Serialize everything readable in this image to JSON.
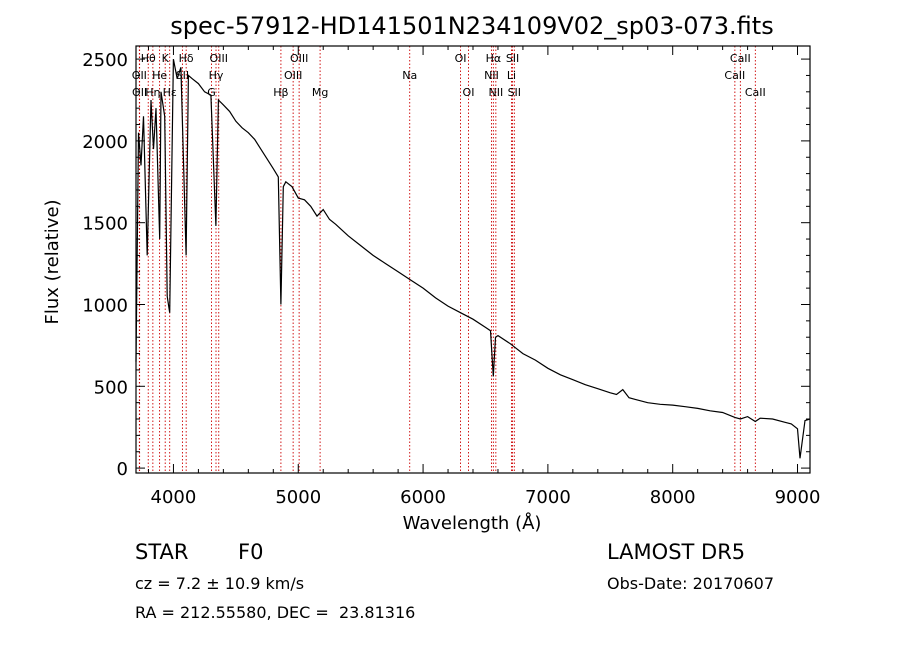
{
  "chart_data": {
    "type": "line",
    "title": "spec-57912-HD141501N234109V02_sp03-073.fits",
    "xlabel": "Wavelength (Å)",
    "ylabel": "Flux (relative)",
    "xlim": [
      3700,
      9100
    ],
    "ylim": [
      -30,
      2580
    ],
    "x_ticks": [
      4000,
      5000,
      6000,
      7000,
      8000,
      9000
    ],
    "y_ticks": [
      0,
      500,
      1000,
      1500,
      2000,
      2500
    ],
    "grid": false,
    "series": [
      {
        "x": [
          3700,
          3720,
          3740,
          3760,
          3790,
          3820,
          3840,
          3860,
          3890,
          3900,
          3930,
          3950,
          3970,
          4000,
          4030,
          4060,
          4101,
          4120,
          4150,
          4200,
          4250,
          4300,
          4340,
          4360,
          4400,
          4450,
          4500,
          4550,
          4600,
          4650,
          4700,
          4750,
          4800,
          4840,
          4861,
          4880,
          4900,
          4950,
          5000,
          5050,
          5100,
          5150,
          5200,
          5250,
          5300,
          5400,
          5500,
          5600,
          5700,
          5800,
          5900,
          6000,
          6100,
          6200,
          6300,
          6400,
          6500,
          6540,
          6563,
          6580,
          6600,
          6700,
          6800,
          6900,
          7000,
          7100,
          7200,
          7300,
          7400,
          7500,
          7550,
          7600,
          7650,
          7700,
          7800,
          7900,
          8000,
          8100,
          8200,
          8300,
          8400,
          8498,
          8542,
          8600,
          8662,
          8700,
          8800,
          8900,
          8950,
          9000,
          9020,
          9060,
          9100
        ],
        "y": [
          650,
          2050,
          1850,
          2150,
          1300,
          2250,
          1950,
          2200,
          1400,
          2300,
          2150,
          1050,
          950,
          2500,
          2380,
          2450,
          1300,
          2400,
          2380,
          2350,
          2300,
          2280,
          1480,
          2250,
          2220,
          2180,
          2120,
          2080,
          2050,
          2010,
          1950,
          1890,
          1830,
          1780,
          1000,
          1720,
          1750,
          1720,
          1650,
          1640,
          1600,
          1540,
          1580,
          1520,
          1490,
          1420,
          1360,
          1300,
          1250,
          1200,
          1150,
          1100,
          1040,
          990,
          950,
          910,
          860,
          840,
          560,
          800,
          810,
          760,
          700,
          660,
          610,
          570,
          540,
          510,
          485,
          460,
          450,
          480,
          430,
          420,
          400,
          390,
          385,
          375,
          365,
          350,
          340,
          310,
          300,
          315,
          285,
          305,
          300,
          280,
          270,
          240,
          60,
          290,
          300
        ]
      }
    ],
    "line_markers": [
      {
        "name": "Hθ",
        "x": 3798,
        "row": 0
      },
      {
        "name": "OII",
        "x": 3727,
        "row": 1
      },
      {
        "name": "OII",
        "x": 3729,
        "row": 2
      },
      {
        "name": "Hη",
        "x": 3835,
        "row": 2
      },
      {
        "name": "K",
        "x": 3934,
        "row": 0
      },
      {
        "name": "He",
        "x": 3889,
        "row": 1
      },
      {
        "name": "Hε",
        "x": 3970,
        "row": 2
      },
      {
        "name": "Hδ",
        "x": 4102,
        "row": 0
      },
      {
        "name": "SII",
        "x": 4072,
        "row": 1
      },
      {
        "name": "OIII",
        "x": 4363,
        "row": 0
      },
      {
        "name": "Hγ",
        "x": 4341,
        "row": 1
      },
      {
        "name": "G",
        "x": 4305,
        "row": 2
      },
      {
        "name": "OIII",
        "x": 5007,
        "row": 0
      },
      {
        "name": "OIII",
        "x": 4959,
        "row": 1
      },
      {
        "name": "Hβ",
        "x": 4861,
        "row": 2
      },
      {
        "name": "Mg",
        "x": 5175,
        "row": 2
      },
      {
        "name": "Na",
        "x": 5893,
        "row": 1
      },
      {
        "name": "OI",
        "x": 6300,
        "row": 0
      },
      {
        "name": "OI",
        "x": 6364,
        "row": 2
      },
      {
        "name": "Hα",
        "x": 6563,
        "row": 0
      },
      {
        "name": "NII",
        "x": 6548,
        "row": 1
      },
      {
        "name": "NII",
        "x": 6583,
        "row": 2
      },
      {
        "name": "SII",
        "x": 6717,
        "row": 0
      },
      {
        "name": "Li",
        "x": 6708,
        "row": 1
      },
      {
        "name": "SII",
        "x": 6731,
        "row": 2
      },
      {
        "name": "CaII",
        "x": 8542,
        "row": 0
      },
      {
        "name": "CaII",
        "x": 8498,
        "row": 1
      },
      {
        "name": "CaII",
        "x": 8662,
        "row": 2
      }
    ],
    "marker_color": "#cc0000",
    "line_color": "#000000"
  },
  "info": {
    "class_label": "STAR",
    "subclass": "F0",
    "survey": "LAMOST DR5",
    "redshift": "cz = 7.2 ± 10.9 km/s",
    "obs_date": "Obs-Date: 20170607",
    "coords": "RA = 212.55580, DEC =  23.81316"
  }
}
